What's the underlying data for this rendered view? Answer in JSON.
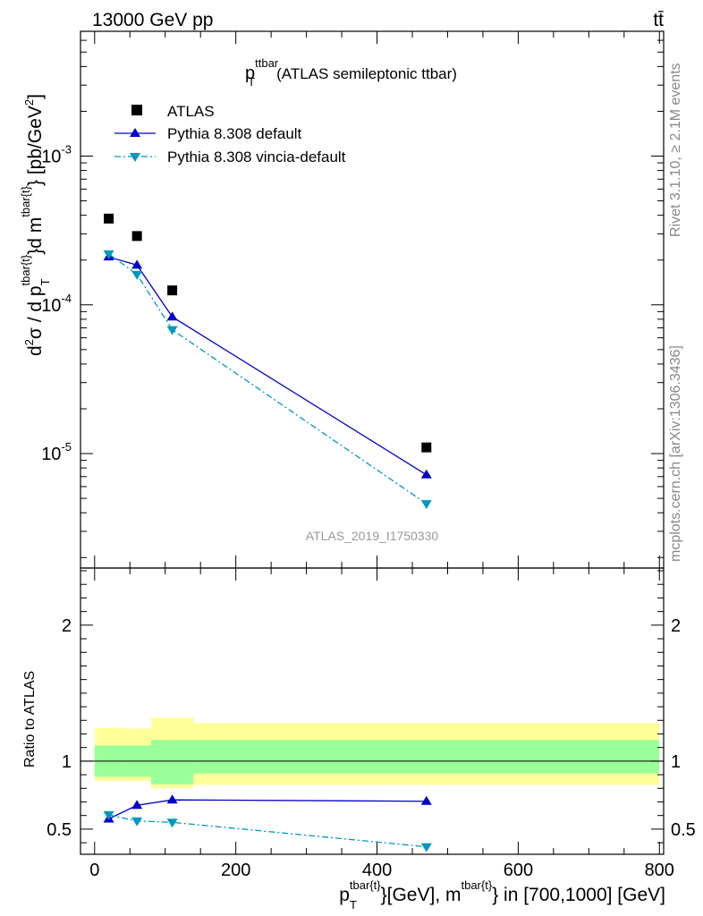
{
  "header": {
    "left": "13000 GeV pp",
    "right": "tt̄"
  },
  "side": {
    "rivet": "Rivet 3.1.10, ≥ 2.1M events",
    "mcplots": "mcplots.cern.ch [arXiv:1306.3436]"
  },
  "watermark": "ATLAS_2019_I1750330",
  "title": {
    "main": "p",
    "sup": "ttbar",
    "sub": "T",
    "rest": "(ATLAS semileptonic ttbar)"
  },
  "ylabel_top": {
    "p1": "d",
    "s1": "2",
    "p2": "σ / d p",
    "sub1": "T",
    "sup2": "tbar{t}",
    "p3": "}d m",
    "sup3": "tbar{t}",
    "p4": "} [pb/GeV",
    "s4": "2",
    "p5": "]"
  },
  "ylabel_bottom": "Ratio to ATLAS",
  "xlabel": {
    "p1": "p",
    "sub1": "T",
    "sup1": "tbar{t}",
    "p2": "}[GeV], m",
    "sup2": "tbar{t}",
    "p3": "} in [700,1000] [GeV]"
  },
  "legend": [
    {
      "label": "ATLAS"
    },
    {
      "label": "Pythia 8.308 default"
    },
    {
      "label": "Pythia 8.308 vincia-default"
    }
  ],
  "colors": {
    "atlas": "#000000",
    "default": "#0000cc",
    "vincia": "#0099bb",
    "band_inner": "#99ff99",
    "band_outer": "#ffff99"
  },
  "chart_data": {
    "type": "scatter",
    "upper": {
      "yscale": "log",
      "ylim": [
        1.7e-06,
        0.0069
      ],
      "yticks": [
        {
          "value": 0.001,
          "base": "10",
          "exp": "-3"
        },
        {
          "value": 0.0001,
          "base": "10",
          "exp": "-4"
        },
        {
          "value": 1e-05,
          "base": "10",
          "exp": "-5"
        }
      ]
    },
    "lower": {
      "ylim": [
        0.315,
        2.42
      ],
      "yticks": [
        0.5,
        1,
        2
      ],
      "yticklabels": [
        "0.5",
        "1",
        "2"
      ]
    },
    "xlim": [
      -20,
      806
    ],
    "xticks": [
      0,
      200,
      400,
      600,
      800
    ],
    "xticklabels": [
      "0",
      "200",
      "400",
      "600",
      "800"
    ],
    "x": [
      20,
      60,
      110,
      470
    ],
    "bin_edges": [
      0,
      40,
      80,
      140,
      800
    ],
    "series": [
      {
        "name": "ATLAS",
        "values": [
          0.00038,
          0.00029,
          0.000125,
          1.1e-05
        ],
        "marker": "square",
        "ratio": [
          1,
          1,
          1,
          1
        ]
      },
      {
        "name": "Pythia 8.308 default",
        "values": [
          0.00021,
          0.000185,
          8.3e-05,
          7.2e-06
        ],
        "marker": "triangle-up",
        "line": "solid",
        "ratio": [
          0.575,
          0.675,
          0.715,
          0.705
        ]
      },
      {
        "name": "Pythia 8.308 vincia-default",
        "values": [
          0.00022,
          0.00016,
          6.8e-05,
          4.6e-06
        ],
        "marker": "triangle-down",
        "line": "dashdot",
        "ratio": [
          0.605,
          0.56,
          0.55,
          0.37
        ]
      }
    ],
    "uncertainty_band": {
      "inner": [
        [
          0.885,
          1.115
        ],
        [
          0.885,
          1.115
        ],
        [
          0.83,
          1.155
        ],
        [
          0.91,
          1.155
        ]
      ],
      "outer": [
        [
          0.855,
          1.245
        ],
        [
          0.855,
          1.24
        ],
        [
          0.8,
          1.32
        ],
        [
          0.825,
          1.28
        ]
      ]
    }
  }
}
